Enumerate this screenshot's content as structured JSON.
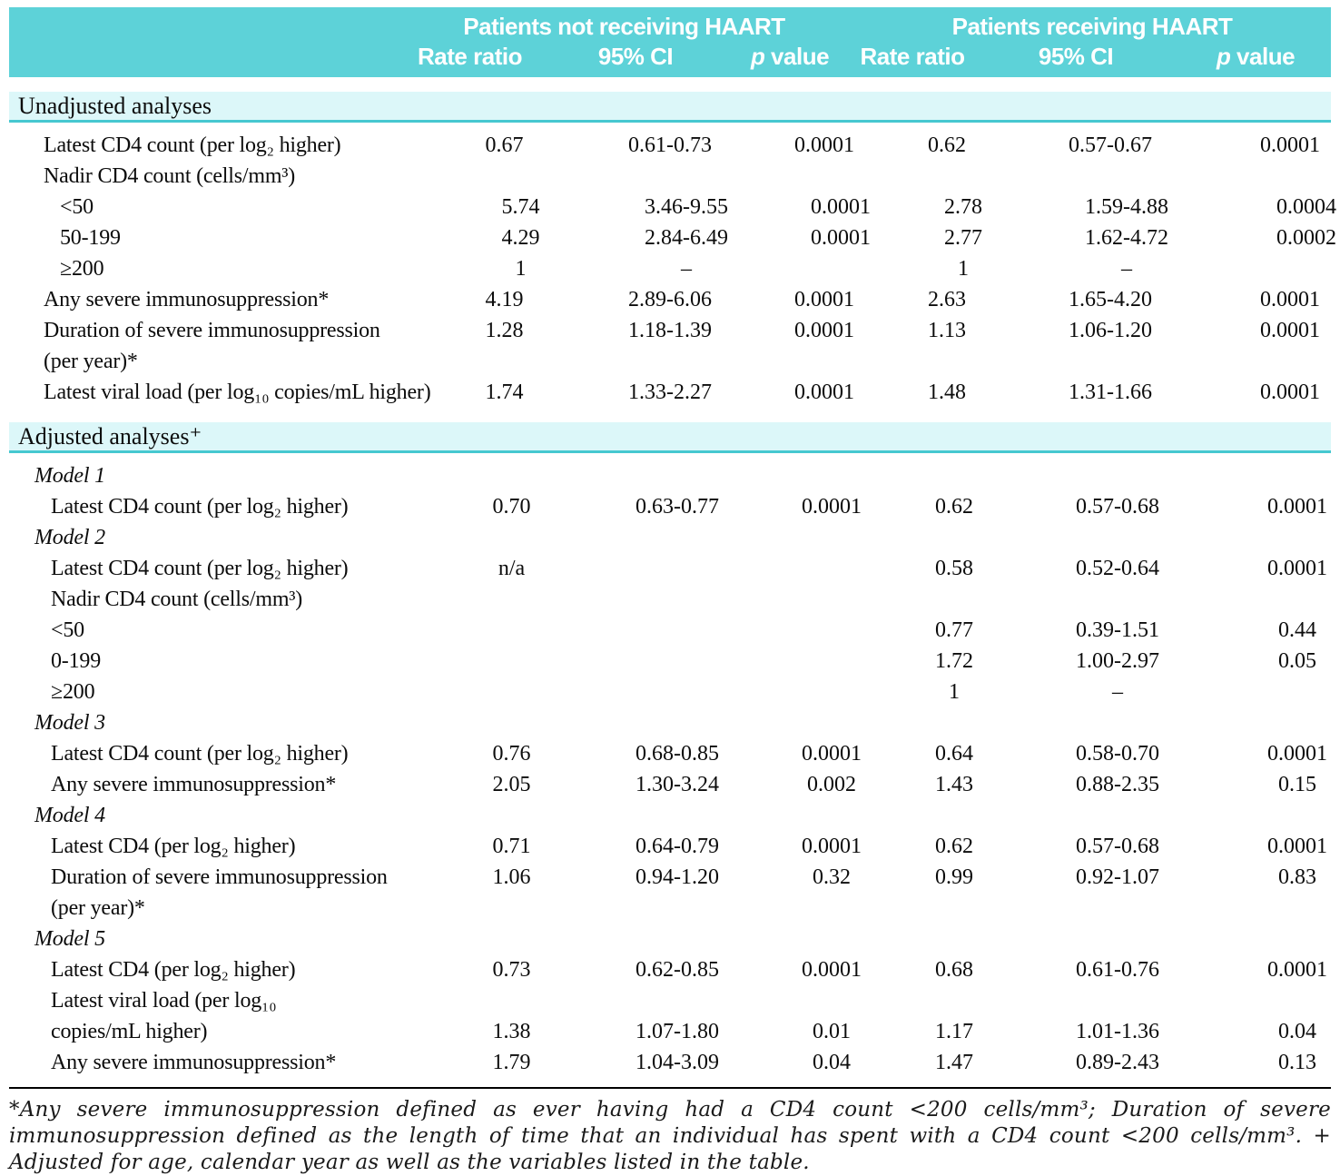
{
  "colors": {
    "header_teal": "#5dd2d8",
    "section_band": "#dcf7f9",
    "section_underline": "#46c8d0",
    "text": "#0c0c0c"
  },
  "header": {
    "group_no_haart": "Patients not receiving HAART",
    "group_haart": "Patients receiving HAART",
    "sub": {
      "rate_ratio": "Rate ratio",
      "ci": "95% CI",
      "p_it": "p",
      "p_rest": " value"
    }
  },
  "table": {
    "rows": [
      {
        "type": "section",
        "label": "Unadjusted analyses"
      },
      {
        "type": "data",
        "cls": "i2",
        "label": "Latest CD4 count (per log₂ higher)",
        "rr1": "0.67",
        "ci1": "0.61-0.73",
        "p1": "0.0001",
        "rr2": "0.62",
        "ci2": "0.57-0.67",
        "p2": "0.0001"
      },
      {
        "type": "data",
        "cls": "i2",
        "label": "Nadir CD4 count (cells/mm³)"
      },
      {
        "type": "data",
        "cls": "i3",
        "label": "<50",
        "rr1": "5.74",
        "ci1": "3.46-9.55",
        "p1": "0.0001",
        "rr2": "2.78",
        "ci2": "1.59-4.88",
        "p2": "0.0004"
      },
      {
        "type": "data",
        "cls": "i3",
        "label": "50-199",
        "rr1": "4.29",
        "ci1": "2.84-6.49",
        "p1": "0.0001",
        "rr2": "2.77",
        "ci2": "1.62-4.72",
        "p2": "0.0002"
      },
      {
        "type": "data",
        "cls": "i3",
        "label": "≥200",
        "rr1": "1",
        "ci1": "–",
        "rr2": "1",
        "ci2": "–"
      },
      {
        "type": "data",
        "cls": "i2",
        "label": "Any severe immunosuppression*",
        "rr1": "4.19",
        "ci1": "2.89-6.06",
        "p1": "0.0001",
        "rr2": "2.63",
        "ci2": "1.65-4.20",
        "p2": "0.0001"
      },
      {
        "type": "data",
        "cls": "i2",
        "label": "Duration of severe immunosuppression",
        "rr1": "1.28",
        "ci1": "1.18-1.39",
        "p1": "0.0001",
        "rr2": "1.13",
        "ci2": "1.06-1.20",
        "p2": "0.0001"
      },
      {
        "type": "data",
        "cls": "i2",
        "label": "(per year)*"
      },
      {
        "type": "data",
        "cls": "i2",
        "label": "Latest viral load (per log₁₀ copies/mL higher)",
        "rr1": "1.74",
        "ci1": "1.33-2.27",
        "p1": "0.0001",
        "rr2": "1.48",
        "ci2": "1.31-1.66",
        "p2": "0.0001"
      },
      {
        "type": "section",
        "label": "Adjusted analyses⁺"
      },
      {
        "type": "data",
        "cls": "i1 model",
        "label": "Model 1"
      },
      {
        "type": "data",
        "cls": "i25",
        "label": "Latest CD4 count (per log₂ higher)",
        "rr1": "0.70",
        "ci1": "0.63-0.77",
        "p1": "0.0001",
        "rr2": "0.62",
        "ci2": "0.57-0.68",
        "p2": "0.0001"
      },
      {
        "type": "data",
        "cls": "i1 model",
        "label": "Model 2"
      },
      {
        "type": "data",
        "cls": "i25",
        "label": "Latest CD4 count (per log₂ higher)",
        "rr1": "n/a",
        "rr2": "0.58",
        "ci2": "0.52-0.64",
        "p2": "0.0001"
      },
      {
        "type": "data",
        "cls": "i25",
        "label": "Nadir CD4 count (cells/mm³)"
      },
      {
        "type": "data",
        "cls": "i25",
        "label": "<50",
        "rr2": "0.77",
        "ci2": "0.39-1.51",
        "p2": "0.44"
      },
      {
        "type": "data",
        "cls": "i25",
        "label": "0-199",
        "rr2": "1.72",
        "ci2": "1.00-2.97",
        "p2": "0.05"
      },
      {
        "type": "data",
        "cls": "i25",
        "label": "≥200",
        "rr2": "1",
        "ci2": "–"
      },
      {
        "type": "data",
        "cls": "i1 model",
        "label": "Model 3"
      },
      {
        "type": "data",
        "cls": "i25",
        "label": "Latest CD4 count (per log₂ higher)",
        "rr1": "0.76",
        "ci1": "0.68-0.85",
        "p1": "0.0001",
        "rr2": "0.64",
        "ci2": "0.58-0.70",
        "p2": "0.0001"
      },
      {
        "type": "data",
        "cls": "i25",
        "label": "Any severe immunosuppression*",
        "rr1": "2.05",
        "ci1": "1.30-3.24",
        "p1": "0.002",
        "rr2": "1.43",
        "ci2": "0.88-2.35",
        "p2": "0.15"
      },
      {
        "type": "data",
        "cls": "i1 model",
        "label": "Model 4"
      },
      {
        "type": "data",
        "cls": "i25",
        "label": "Latest CD4 (per log₂ higher)",
        "rr1": "0.71",
        "ci1": "0.64-0.79",
        "p1": "0.0001",
        "rr2": "0.62",
        "ci2": "0.57-0.68",
        "p2": "0.0001"
      },
      {
        "type": "data",
        "cls": "i25",
        "label": "Duration of severe immunosuppression",
        "rr1": "1.06",
        "ci1": "0.94-1.20",
        "p1": "0.32",
        "rr2": "0.99",
        "ci2": "0.92-1.07",
        "p2": "0.83"
      },
      {
        "type": "data",
        "cls": "i25",
        "label": "(per year)*"
      },
      {
        "type": "data",
        "cls": "i1 model",
        "label": "Model 5"
      },
      {
        "type": "data",
        "cls": "i25",
        "label": "Latest CD4 (per log₂ higher)",
        "rr1": "0.73",
        "ci1": "0.62-0.85",
        "p1": "0.0001",
        "rr2": "0.68",
        "ci2": "0.61-0.76",
        "p2": "0.0001"
      },
      {
        "type": "data",
        "cls": "i25",
        "label": "Latest viral load (per log₁₀"
      },
      {
        "type": "data",
        "cls": "i25",
        "label": "copies/mL higher)",
        "rr1": "1.38",
        "ci1": "1.07-1.80",
        "p1": "0.01",
        "rr2": "1.17",
        "ci2": "1.01-1.36",
        "p2": "0.04"
      },
      {
        "type": "data",
        "cls": "i25",
        "label": "Any severe immunosuppression*",
        "rr1": "1.79",
        "ci1": "1.04-3.09",
        "p1": "0.04",
        "rr2": "1.47",
        "ci2": "0.89-2.43",
        "p2": "0.13"
      }
    ]
  },
  "footnote": {
    "text": "*Any severe immunosuppression defined as ever having had a CD4 count <200 cells/mm³; Duration of severe immunosuppression defined as the length of time that an individual has spent with a CD4 count <200 cells/mm³. + Adjusted for age, calendar year as well as the variables listed in the table."
  }
}
